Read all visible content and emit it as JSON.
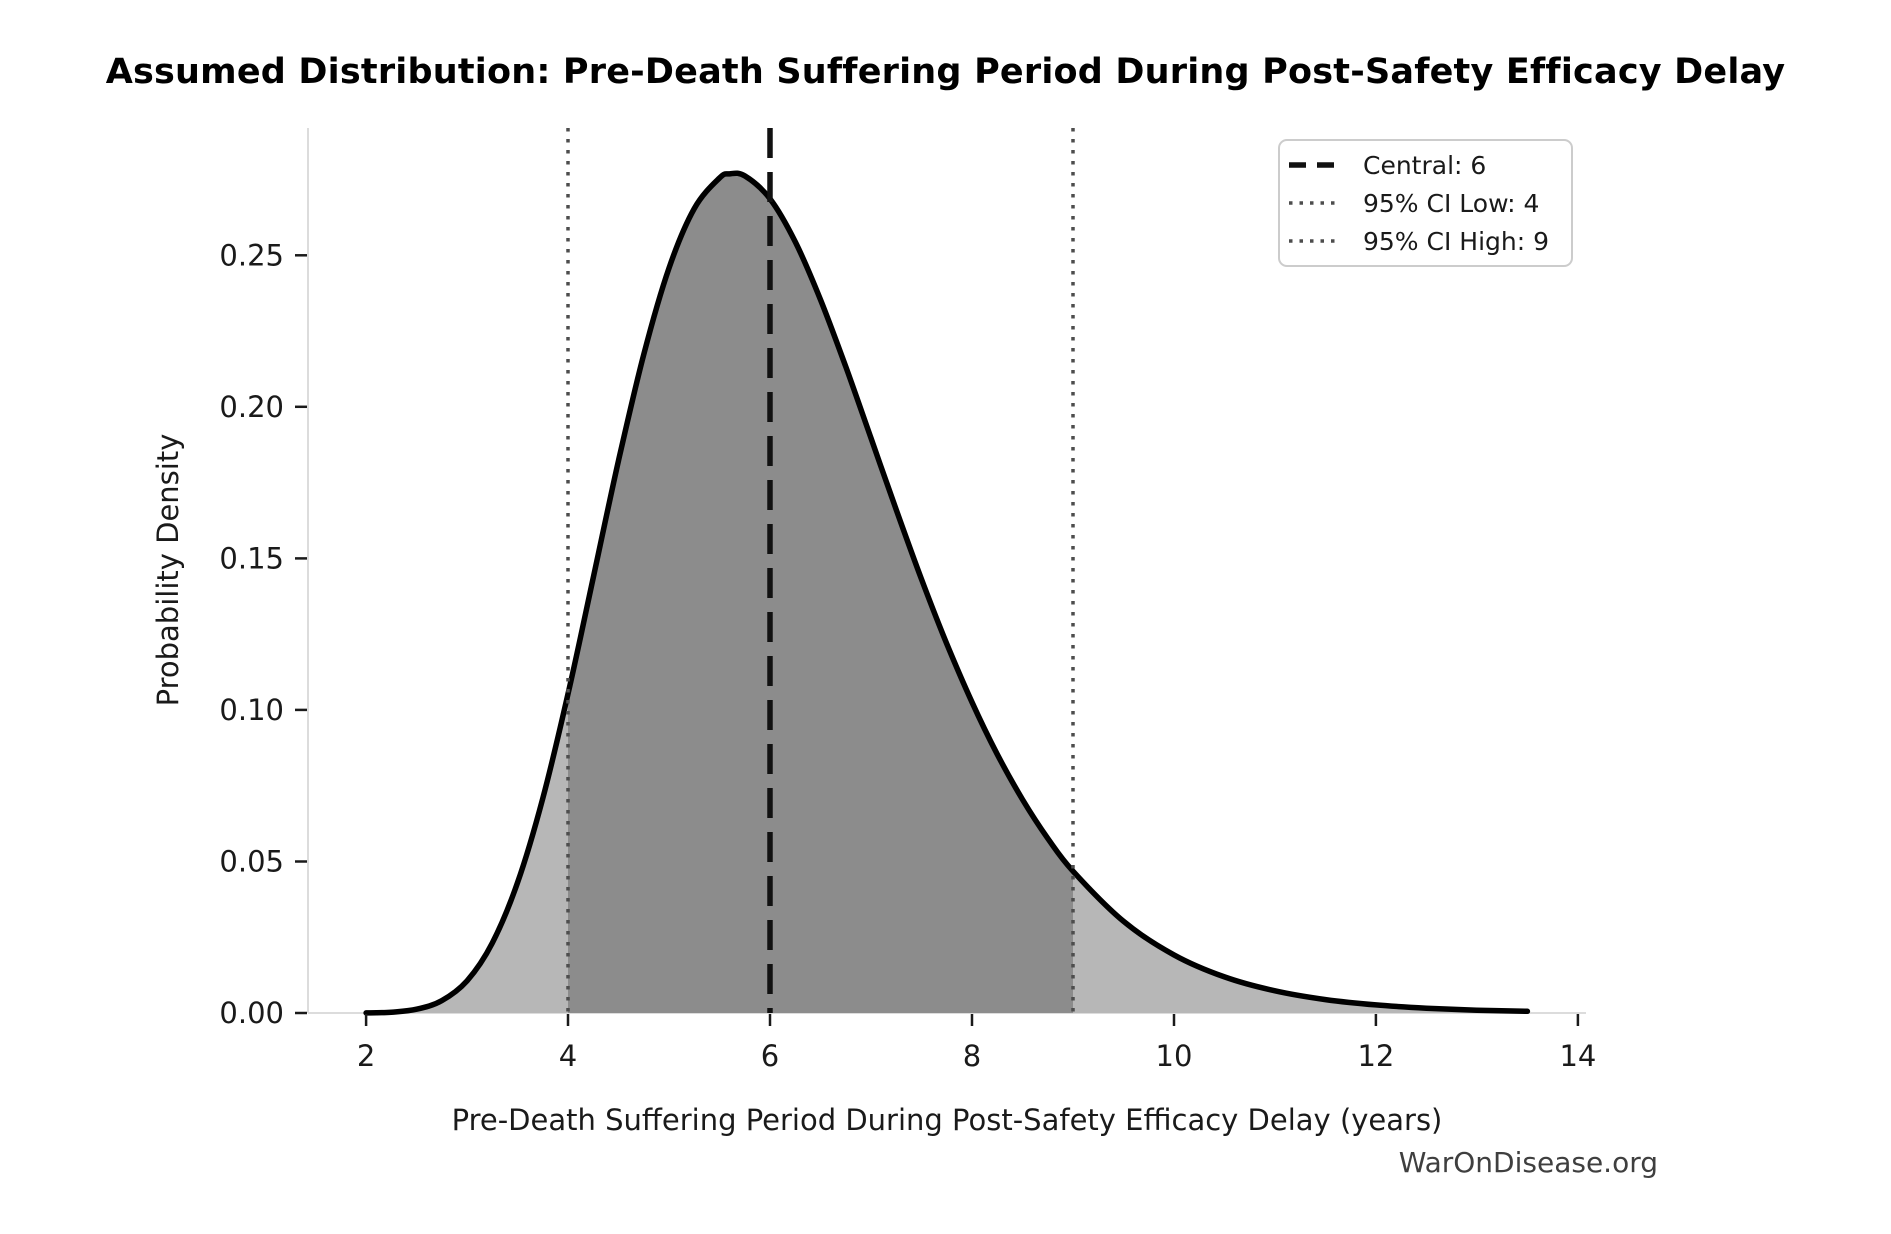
{
  "page": {
    "title": "Assumed Distribution: Pre-Death Suffering Period During Post-Safety Efficacy Delay",
    "watermark": "WarOnDisease.org"
  },
  "legend": {
    "items": [
      {
        "label": "Central: 6",
        "style": "dashed",
        "color": "#111111"
      },
      {
        "label": "95% CI Low: 4",
        "style": "dotted",
        "color": "#4d4d4d"
      },
      {
        "label": "95% CI High: 9",
        "style": "dotted",
        "color": "#4d4d4d"
      }
    ]
  },
  "chart_data": {
    "type": "area",
    "title": "Assumed Distribution: Pre-Death Suffering Period During Post-Safety Efficacy Delay",
    "xlabel": "Pre-Death Suffering Period During Post-Safety Efficacy Delay (years)",
    "ylabel": "Probability Density",
    "xlim": [
      1.425,
      14.08
    ],
    "ylim": [
      0,
      0.292
    ],
    "x_ticks": [
      2,
      4,
      6,
      8,
      10,
      12,
      14
    ],
    "y_ticks": [
      0,
      0.05,
      0.1,
      0.15,
      0.2,
      0.25
    ],
    "y_tick_labels": [
      "0.00",
      "0.05",
      "0.10",
      "0.15",
      "0.20",
      "0.25"
    ],
    "grid": false,
    "legend_position": "upper right",
    "central_value": 6,
    "ci95_low": 4,
    "ci95_high": 9,
    "peak": {
      "x": 5.64,
      "density": 0.277
    },
    "markers": [
      {
        "id": "central",
        "value": 6,
        "label": "Central: 6",
        "style": "dashed",
        "color": "#111111"
      },
      {
        "id": "ci-low",
        "value": 4,
        "label": "95% CI Low: 4",
        "style": "dotted",
        "color": "#4d4d4d"
      },
      {
        "id": "ci-high",
        "value": 9,
        "label": "95% CI High: 9",
        "style": "dotted",
        "color": "#4d4d4d"
      }
    ],
    "ci_fill_range": [
      4,
      9
    ],
    "colors": {
      "curve": "#000000",
      "fill": "#b7b7b7",
      "fill_ci": "#8c8c8c",
      "spine": "#dcdcdc",
      "tick": "#1a1a1a",
      "text": "#1a1a1a",
      "watermark": "#3f3f3f",
      "legend_border": "#cccccc"
    },
    "curve": {
      "x": [
        2.0,
        2.25,
        2.5,
        2.75,
        3.0,
        3.25,
        3.5,
        3.75,
        4.0,
        4.25,
        4.5,
        4.75,
        5.0,
        5.25,
        5.5,
        5.6,
        5.75,
        6.0,
        6.25,
        6.5,
        6.75,
        7.0,
        7.25,
        7.5,
        7.75,
        8.0,
        8.25,
        8.5,
        8.75,
        9.0,
        9.5,
        10.0,
        10.5,
        11.0,
        11.5,
        12.0,
        12.5,
        13.0,
        13.5
      ],
      "y": [
        4e-05,
        0.00028,
        0.00124,
        0.00408,
        0.01064,
        0.02308,
        0.043,
        0.07084,
        0.1053,
        0.14369,
        0.18227,
        0.21735,
        0.24577,
        0.26544,
        0.27551,
        0.27687,
        0.27621,
        0.26864,
        0.25441,
        0.23535,
        0.21323,
        0.18967,
        0.16598,
        0.14314,
        0.12186,
        0.10253,
        0.08539,
        0.07044,
        0.05764,
        0.0468,
        0.03027,
        0.01916,
        0.01192,
        0.00731,
        0.00443,
        0.00266,
        0.00159,
        0.00094,
        0.00056
      ]
    }
  }
}
